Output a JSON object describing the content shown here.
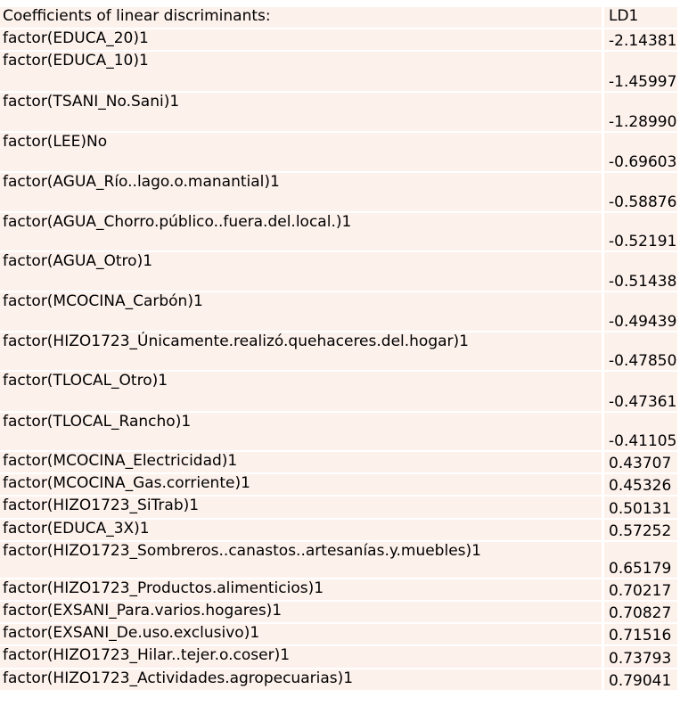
{
  "table": {
    "header_label": "Coefficients of linear discriminants:",
    "header_col": "LD1",
    "rows": [
      {
        "name": "factor(EDUCA_20)1",
        "value": "-2.14381"
      },
      {
        "name": "factor(EDUCA_10)1",
        "value": "-1.45997"
      },
      {
        "name": "factor(TSANI_No.Sani)1",
        "value": "-1.28990"
      },
      {
        "name": "factor(LEE)No",
        "value": "-0.69603"
      },
      {
        "name": "factor(AGUA_Río..lago.o.manantial)1",
        "value": "-0.58876"
      },
      {
        "name": "factor(AGUA_Chorro.público..fuera.del.local.)1",
        "value": "-0.52191"
      },
      {
        "name": "factor(AGUA_Otro)1",
        "value": "-0.51438"
      },
      {
        "name": "factor(MCOCINA_Carbón)1",
        "value": "-0.49439"
      },
      {
        "name": "factor(HIZO1723_Únicamente.realizó.quehaceres.del.hogar)1",
        "value": "-0.47850"
      },
      {
        "name": "factor(TLOCAL_Otro)1",
        "value": "-0.47361"
      },
      {
        "name": "factor(TLOCAL_Rancho)1",
        "value": "-0.41105"
      },
      {
        "name": "factor(MCOCINA_Electricidad)1",
        "value": "0.43707"
      },
      {
        "name": "factor(MCOCINA_Gas.corriente)1",
        "value": "0.45326"
      },
      {
        "name": "factor(HIZO1723_SiTrab)1",
        "value": "0.50131"
      },
      {
        "name": "factor(EDUCA_3X)1",
        "value": "0.57252"
      },
      {
        "name": "factor(HIZO1723_Sombreros..canastos..artesanías.y.muebles)1",
        "value": "0.65179"
      },
      {
        "name": "factor(HIZO1723_Productos.alimenticios)1",
        "value": "0.70217"
      },
      {
        "name": "factor(EXSANI_Para.varios.hogares)1",
        "value": "0.70827"
      },
      {
        "name": "factor(EXSANI_De.uso.exclusivo)1",
        "value": "0.71516"
      },
      {
        "name": "factor(HIZO1723_Hilar..tejer.o.coser)1",
        "value": "0.73793"
      },
      {
        "name": "factor(HIZO1723_Actividades.agropecuarias)1",
        "value": "0.79041"
      }
    ]
  }
}
